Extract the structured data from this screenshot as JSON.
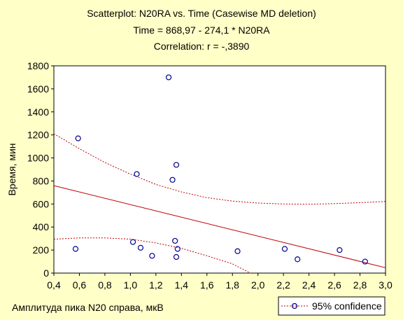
{
  "title_lines": [
    "Scatterplot: N20RA    vs. Time (Casewise MD deletion)",
    "Time = 868,97 - 274,1  * N20RA",
    "Correlation: r = -,3890"
  ],
  "colors": {
    "background": "#ffffc8",
    "plot_background": "#ffffff",
    "points": "#00008b",
    "regression_line": "#c00000",
    "confidence": "#c00000"
  },
  "chart_data": {
    "type": "scatter",
    "title": "Scatterplot: N20RA    vs. Time (Casewise MD deletion)",
    "xlabel": "Амплитуда пика N20 справа, мкВ",
    "ylabel": "Время, мин",
    "xlim": [
      0.4,
      3.0
    ],
    "ylim": [
      0,
      1800
    ],
    "x_tick_labels": [
      "0,4",
      "0,6",
      "0,8",
      "1,0",
      "1,2",
      "1,4",
      "1,6",
      "1,8",
      "2,0",
      "2,2",
      "2,4",
      "2,6",
      "2,8",
      "3,0"
    ],
    "y_tick_labels": [
      "0",
      "200",
      "400",
      "600",
      "800",
      "1000",
      "1200",
      "1400",
      "1600",
      "1800"
    ],
    "points": [
      {
        "x": 0.59,
        "y": 1170
      },
      {
        "x": 0.57,
        "y": 210
      },
      {
        "x": 1.02,
        "y": 270
      },
      {
        "x": 1.05,
        "y": 860
      },
      {
        "x": 1.08,
        "y": 220
      },
      {
        "x": 1.17,
        "y": 150
      },
      {
        "x": 1.3,
        "y": 1700
      },
      {
        "x": 1.33,
        "y": 810
      },
      {
        "x": 1.35,
        "y": 280
      },
      {
        "x": 1.36,
        "y": 940
      },
      {
        "x": 1.36,
        "y": 140
      },
      {
        "x": 1.37,
        "y": 210
      },
      {
        "x": 1.84,
        "y": 190
      },
      {
        "x": 2.21,
        "y": 210
      },
      {
        "x": 2.31,
        "y": 120
      },
      {
        "x": 2.64,
        "y": 200
      },
      {
        "x": 2.84,
        "y": 100
      }
    ],
    "regression": {
      "intercept": 868.97,
      "slope": -274.1
    },
    "confidence_upper": [
      {
        "x": 0.4,
        "y": 1210
      },
      {
        "x": 0.6,
        "y": 1080
      },
      {
        "x": 0.8,
        "y": 960
      },
      {
        "x": 1.0,
        "y": 860
      },
      {
        "x": 1.2,
        "y": 770
      },
      {
        "x": 1.4,
        "y": 705
      },
      {
        "x": 1.6,
        "y": 655
      },
      {
        "x": 1.8,
        "y": 625
      },
      {
        "x": 2.0,
        "y": 608
      },
      {
        "x": 2.2,
        "y": 600
      },
      {
        "x": 2.4,
        "y": 598
      },
      {
        "x": 2.6,
        "y": 603
      },
      {
        "x": 2.8,
        "y": 612
      },
      {
        "x": 3.0,
        "y": 622
      }
    ],
    "confidence_lower": [
      {
        "x": 0.4,
        "y": 295
      },
      {
        "x": 0.6,
        "y": 305
      },
      {
        "x": 0.8,
        "y": 305
      },
      {
        "x": 1.0,
        "y": 295
      },
      {
        "x": 1.2,
        "y": 262
      },
      {
        "x": 1.4,
        "y": 215
      },
      {
        "x": 1.6,
        "y": 150
      },
      {
        "x": 1.8,
        "y": 80
      },
      {
        "x": 1.94,
        "y": 0
      }
    ],
    "legend": {
      "label": "95% confidence",
      "placement": "bottom-right"
    },
    "grid": false
  }
}
